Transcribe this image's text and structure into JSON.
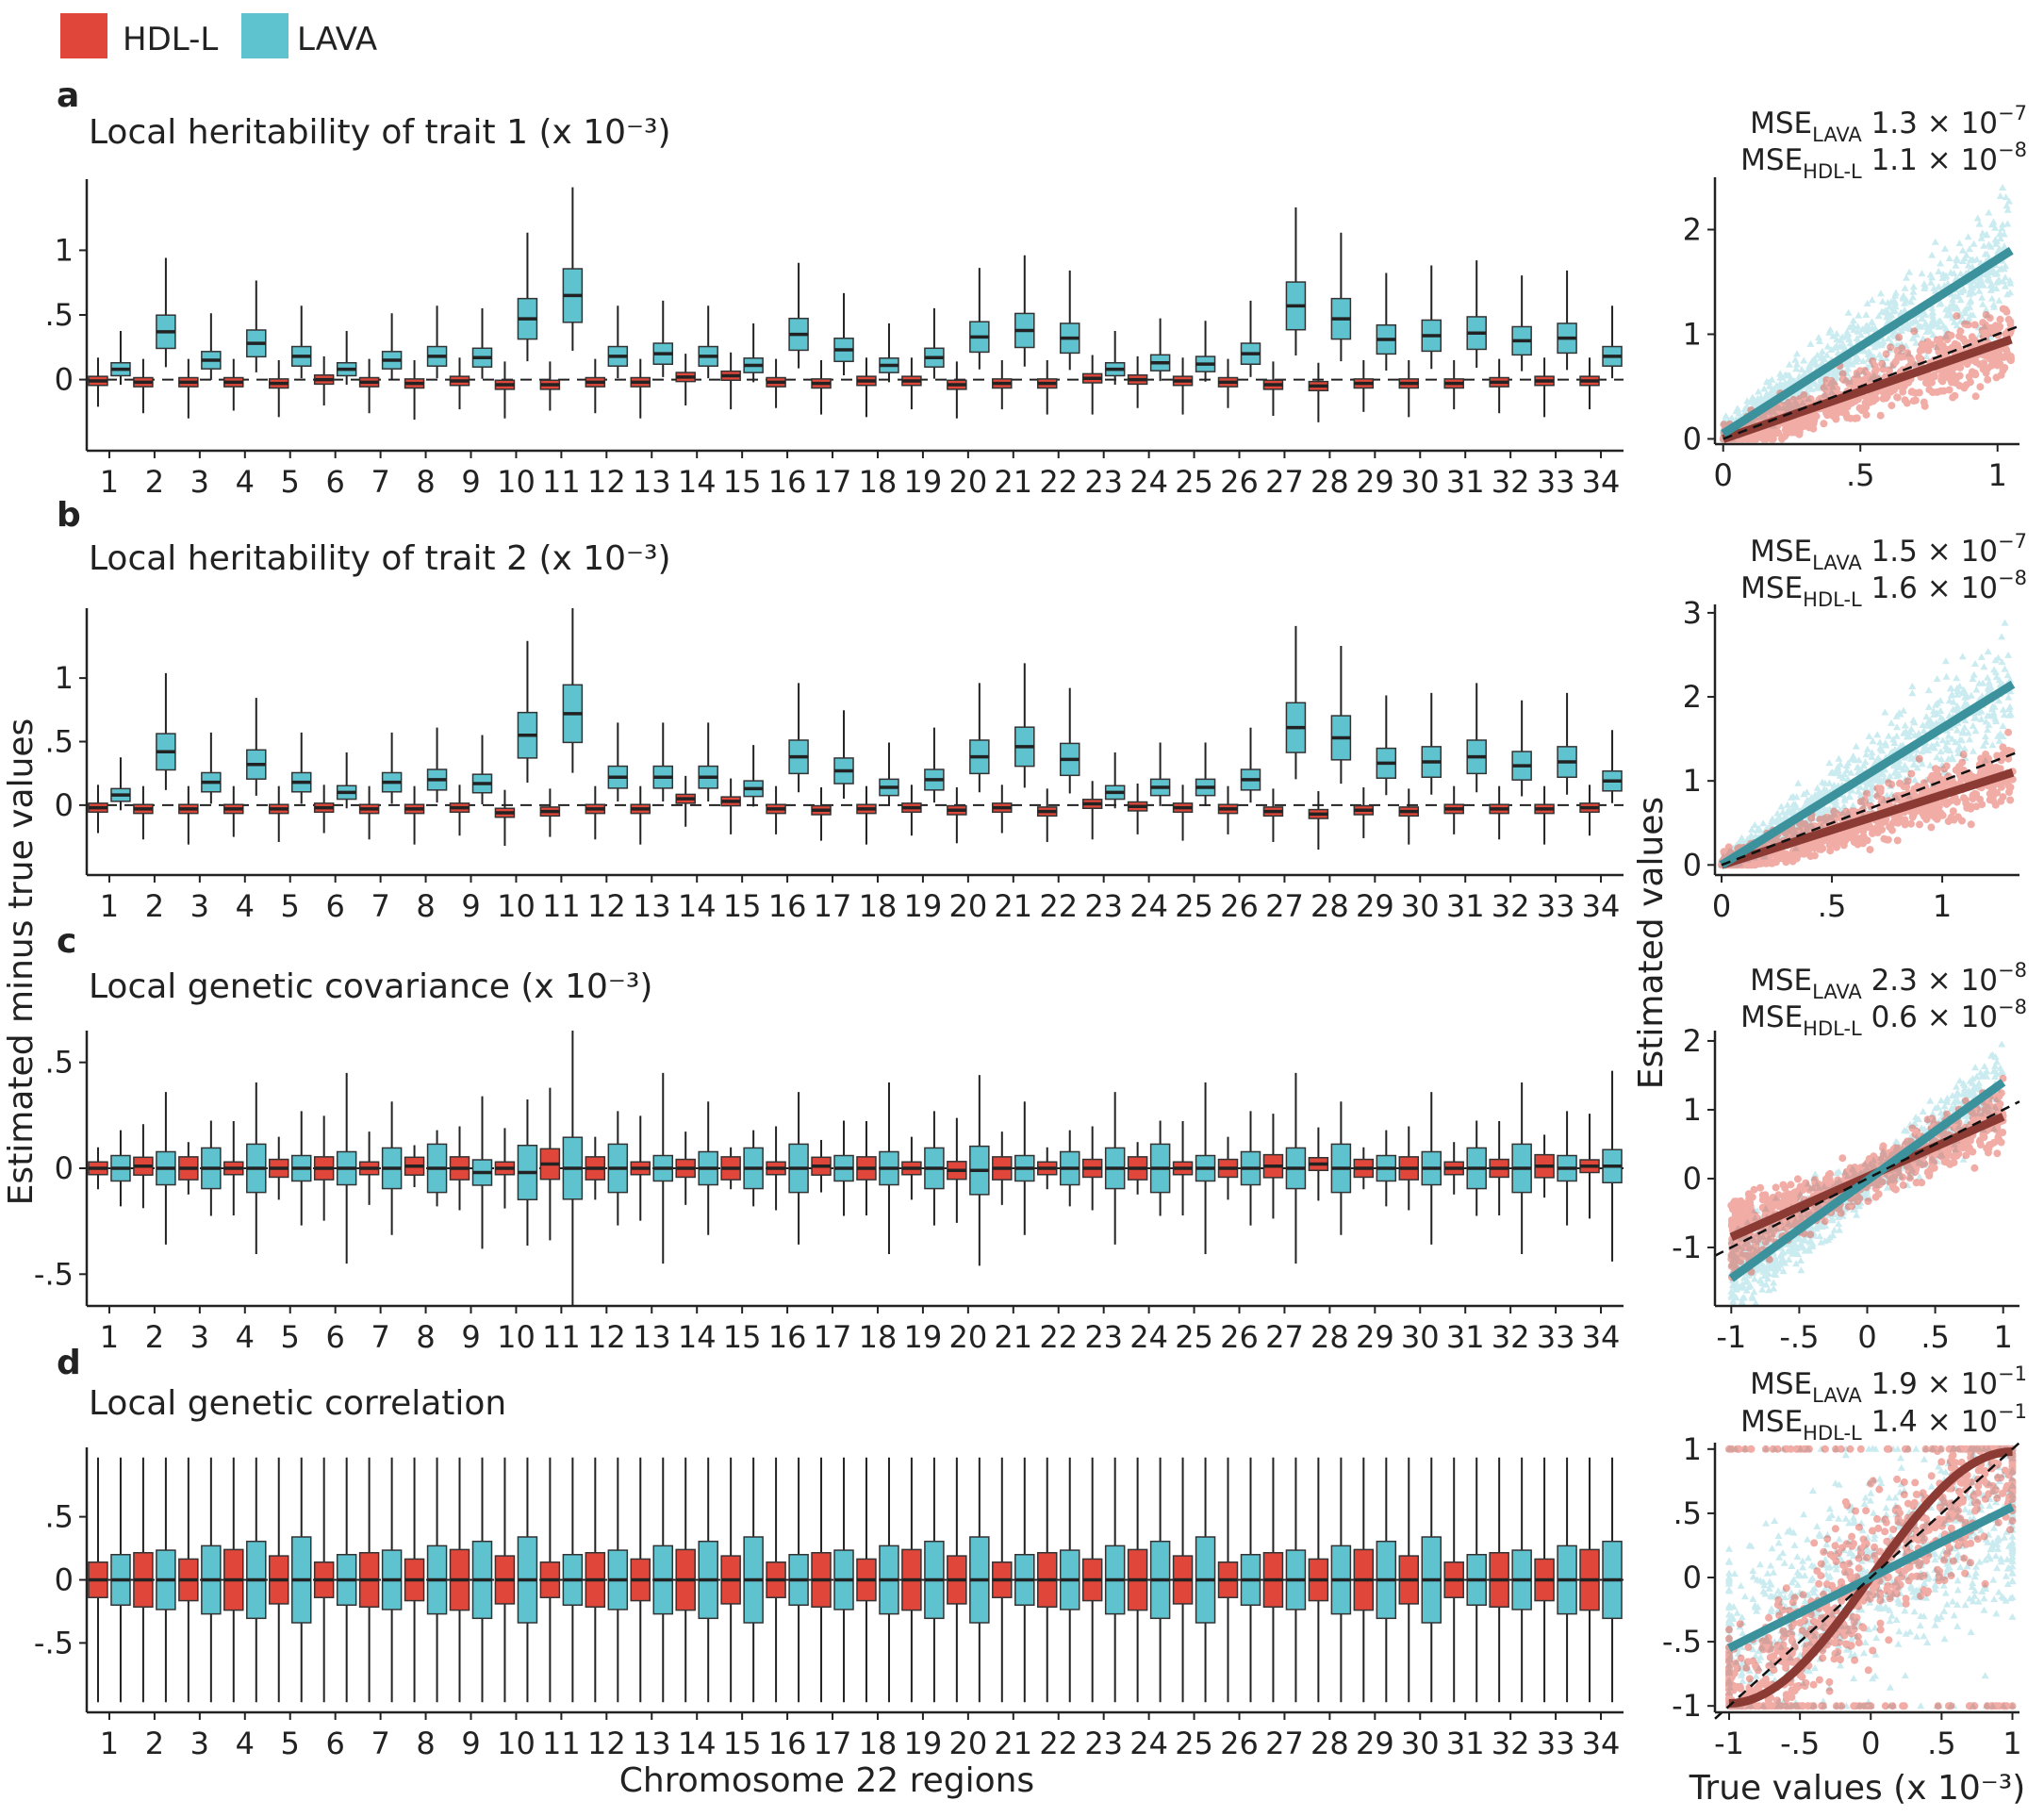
{
  "legend": [
    {
      "label": "HDL-L",
      "color": "#e0473a"
    },
    {
      "label": "LAVA",
      "color": "#5ec3cf"
    }
  ],
  "colors": {
    "hdl": "#e0473a",
    "lava": "#5ec3cf",
    "hdl_line": "#8b3b33",
    "lava_line": "#3c929c",
    "axis": "#222222"
  },
  "y_axis_title": "Estimated minus true values",
  "x_axis_title": "Chromosome 22 regions",
  "scatter_y_axis_title": "Estimated values",
  "scatter_x_axis_title": "True values (x 10⁻³)",
  "chart_data": [
    {
      "type": "boxplot",
      "panel": "a",
      "title": "Local heritability of trait 1 (x 10⁻³)",
      "categories": [
        "1",
        "2",
        "3",
        "4",
        "5",
        "6",
        "7",
        "8",
        "9",
        "10",
        "11",
        "12",
        "13",
        "14",
        "15",
        "16",
        "17",
        "18",
        "19",
        "20",
        "21",
        "22",
        "23",
        "24",
        "25",
        "26",
        "27",
        "28",
        "29",
        "30",
        "31",
        "32",
        "33",
        "34"
      ],
      "ylim": [
        -0.55,
        1.55
      ],
      "yticks": [
        0,
        0.5,
        1
      ],
      "ytick_labels": [
        "0",
        ".5",
        "1"
      ],
      "series": [
        {
          "name": "HDL-L",
          "medians": [
            -0.01,
            -0.02,
            -0.02,
            -0.02,
            -0.03,
            0.0,
            -0.02,
            -0.03,
            -0.01,
            -0.04,
            -0.04,
            -0.02,
            -0.02,
            0.02,
            0.03,
            -0.02,
            -0.03,
            -0.01,
            -0.01,
            -0.04,
            -0.03,
            -0.03,
            0.01,
            0.0,
            -0.01,
            -0.02,
            -0.04,
            -0.05,
            -0.03,
            -0.03,
            -0.03,
            -0.02,
            -0.01,
            -0.01
          ]
        },
        {
          "name": "LAVA",
          "medians": [
            0.08,
            0.37,
            0.15,
            0.28,
            0.18,
            0.08,
            0.15,
            0.18,
            0.17,
            0.47,
            0.65,
            0.18,
            0.2,
            0.18,
            0.11,
            0.35,
            0.23,
            0.11,
            0.17,
            0.33,
            0.38,
            0.32,
            0.08,
            0.13,
            0.12,
            0.2,
            0.57,
            0.47,
            0.31,
            0.34,
            0.36,
            0.3,
            0.32,
            0.18
          ]
        }
      ]
    },
    {
      "type": "boxplot",
      "panel": "b",
      "title": "Local heritability of trait 2 (x 10⁻³)",
      "categories": [
        "1",
        "2",
        "3",
        "4",
        "5",
        "6",
        "7",
        "8",
        "9",
        "10",
        "11",
        "12",
        "13",
        "14",
        "15",
        "16",
        "17",
        "18",
        "19",
        "20",
        "21",
        "22",
        "23",
        "24",
        "25",
        "26",
        "27",
        "28",
        "29",
        "30",
        "31",
        "32",
        "33",
        "34"
      ],
      "ylim": [
        -0.55,
        1.55
      ],
      "yticks": [
        0,
        0.5,
        1
      ],
      "ytick_labels": [
        "0",
        ".5",
        "1"
      ],
      "series": [
        {
          "name": "HDL-L",
          "medians": [
            -0.02,
            -0.03,
            -0.03,
            -0.03,
            -0.03,
            -0.02,
            -0.03,
            -0.03,
            -0.02,
            -0.06,
            -0.05,
            -0.03,
            -0.03,
            0.05,
            0.03,
            -0.03,
            -0.04,
            -0.03,
            -0.02,
            -0.04,
            -0.02,
            -0.05,
            0.01,
            -0.01,
            -0.02,
            -0.03,
            -0.05,
            -0.07,
            -0.04,
            -0.05,
            -0.03,
            -0.03,
            -0.03,
            -0.02
          ]
        },
        {
          "name": "LAVA",
          "medians": [
            0.08,
            0.42,
            0.18,
            0.32,
            0.18,
            0.1,
            0.18,
            0.2,
            0.17,
            0.55,
            0.72,
            0.22,
            0.22,
            0.22,
            0.13,
            0.38,
            0.27,
            0.14,
            0.2,
            0.38,
            0.46,
            0.36,
            0.1,
            0.14,
            0.14,
            0.2,
            0.61,
            0.53,
            0.33,
            0.34,
            0.38,
            0.31,
            0.34,
            0.19
          ]
        }
      ]
    },
    {
      "type": "boxplot",
      "panel": "c",
      "title": "Local genetic covariance (x 10⁻³)",
      "categories": [
        "1",
        "2",
        "3",
        "4",
        "5",
        "6",
        "7",
        "8",
        "9",
        "10",
        "11",
        "12",
        "13",
        "14",
        "15",
        "16",
        "17",
        "18",
        "19",
        "20",
        "21",
        "22",
        "23",
        "24",
        "25",
        "26",
        "27",
        "28",
        "29",
        "30",
        "31",
        "32",
        "33",
        "34"
      ],
      "ylim": [
        -0.65,
        0.65
      ],
      "yticks": [
        -0.5,
        0,
        0.5
      ],
      "ytick_labels": [
        "-.5",
        "0",
        ".5"
      ],
      "series": [
        {
          "name": "HDL-L",
          "medians": [
            0,
            0.01,
            0,
            0,
            0,
            0,
            0,
            0.01,
            0,
            0,
            0.02,
            0,
            0,
            0,
            0,
            0,
            0.01,
            0,
            0,
            -0.01,
            0,
            0,
            0,
            0,
            0,
            0,
            0.01,
            0.02,
            0,
            0,
            0,
            0,
            0.01,
            0.01
          ]
        },
        {
          "name": "LAVA",
          "medians": [
            0,
            0,
            0,
            0,
            0,
            0,
            0,
            0,
            -0.02,
            -0.02,
            0,
            0,
            0,
            0,
            0,
            0,
            0,
            0,
            0,
            -0.01,
            0,
            0,
            0,
            0,
            0,
            0,
            0,
            0,
            0,
            0,
            0,
            0,
            0,
            0.01
          ]
        }
      ]
    },
    {
      "type": "boxplot",
      "panel": "d",
      "title": "Local genetic correlation",
      "categories": [
        "1",
        "2",
        "3",
        "4",
        "5",
        "6",
        "7",
        "8",
        "9",
        "10",
        "11",
        "12",
        "13",
        "14",
        "15",
        "16",
        "17",
        "18",
        "19",
        "20",
        "21",
        "22",
        "23",
        "24",
        "25",
        "26",
        "27",
        "28",
        "29",
        "30",
        "31",
        "32",
        "33",
        "34"
      ],
      "ylim": [
        -1.05,
        1.05
      ],
      "yticks": [
        -0.5,
        0,
        0.5
      ],
      "ytick_labels": [
        "-.5",
        "0",
        ".5"
      ],
      "series": [
        {
          "name": "HDL-L",
          "medians": [
            0,
            0,
            0,
            0,
            0,
            0,
            0,
            0,
            0,
            0,
            0,
            0,
            0,
            0,
            0,
            0,
            0,
            0,
            0,
            0,
            0,
            0,
            0,
            0,
            0,
            0,
            0,
            0,
            0,
            0,
            0,
            0,
            0,
            0
          ]
        },
        {
          "name": "LAVA",
          "medians": [
            0,
            0,
            0,
            0,
            0,
            0,
            0,
            0,
            0,
            0,
            0,
            0,
            0,
            0,
            0,
            0,
            0,
            0,
            0,
            0,
            0,
            0,
            0,
            0,
            0,
            0,
            0,
            0,
            0,
            0,
            0,
            0,
            0,
            0
          ]
        }
      ]
    },
    {
      "type": "scatter",
      "panel": "a",
      "mse": [
        {
          "name": "LAVA",
          "coef": "1.3",
          "exp": "-7"
        },
        {
          "name": "HDL-L",
          "coef": "1.1",
          "exp": "-8"
        }
      ],
      "xlim": [
        -0.03,
        1.08
      ],
      "ylim": [
        -0.05,
        2.5
      ],
      "xticks": [
        0,
        0.5,
        1
      ],
      "xtick_labels": [
        "0",
        ".5",
        "1"
      ],
      "yticks": [
        0,
        1,
        2
      ],
      "ytick_labels": [
        "0",
        "1",
        "2"
      ],
      "fit": {
        "LAVA": [
          [
            0,
            0.05
          ],
          [
            1.05,
            1.8
          ]
        ],
        "HDL-L": [
          [
            0,
            0.0
          ],
          [
            1.05,
            0.95
          ]
        ],
        "identity": [
          [
            0,
            0
          ],
          [
            1.08,
            1.08
          ]
        ]
      }
    },
    {
      "type": "scatter",
      "panel": "b",
      "mse": [
        {
          "name": "LAVA",
          "coef": "1.5",
          "exp": "-7"
        },
        {
          "name": "HDL-L",
          "coef": "1.6",
          "exp": "-8"
        }
      ],
      "xlim": [
        -0.03,
        1.35
      ],
      "ylim": [
        -0.12,
        3.1
      ],
      "xticks": [
        0,
        0.5,
        1
      ],
      "xtick_labels": [
        "0",
        ".5",
        "1"
      ],
      "yticks": [
        0,
        1,
        2,
        3
      ],
      "ytick_labels": [
        "0",
        "1",
        "2",
        "3"
      ],
      "fit": {
        "LAVA": [
          [
            0,
            0.0
          ],
          [
            1.32,
            2.15
          ]
        ],
        "HDL-L": [
          [
            0,
            0.0
          ],
          [
            1.32,
            1.1
          ]
        ],
        "identity": [
          [
            0,
            0
          ],
          [
            1.35,
            1.35
          ]
        ]
      }
    },
    {
      "type": "scatter",
      "panel": "c",
      "mse": [
        {
          "name": "LAVA",
          "coef": "2.3",
          "exp": "-8"
        },
        {
          "name": "HDL-L",
          "coef": "0.6",
          "exp": "-8"
        }
      ],
      "xlim": [
        -1.12,
        1.12
      ],
      "ylim": [
        -1.85,
        2.15
      ],
      "xticks": [
        -1,
        -0.5,
        0,
        0.5,
        1
      ],
      "xtick_labels": [
        "-1",
        "-.5",
        "0",
        ".5",
        "1"
      ],
      "yticks": [
        -1,
        0,
        1,
        2
      ],
      "ytick_labels": [
        "-1",
        "0",
        "1",
        "2"
      ],
      "fit": {
        "LAVA": [
          [
            -1,
            -1.45
          ],
          [
            1,
            1.4
          ]
        ],
        "HDL-L": [
          [
            -1,
            -0.85
          ],
          [
            1,
            0.9
          ]
        ],
        "identity": [
          [
            -1.12,
            -1.12
          ],
          [
            1.12,
            1.12
          ]
        ]
      }
    },
    {
      "type": "scatter",
      "panel": "d",
      "mse": [
        {
          "name": "LAVA",
          "coef": "1.9",
          "exp": "-1"
        },
        {
          "name": "HDL-L",
          "coef": "1.4",
          "exp": "-1"
        }
      ],
      "xlim": [
        -1.1,
        1.05
      ],
      "ylim": [
        -1.05,
        1.05
      ],
      "xticks": [
        -1,
        -0.5,
        0,
        0.5,
        1
      ],
      "xtick_labels": [
        "-1",
        "-.5",
        "0",
        ".5",
        "1"
      ],
      "yticks": [
        -1,
        -0.5,
        0,
        0.5,
        1
      ],
      "ytick_labels": [
        "-1",
        "-.5",
        "0",
        ".5",
        "1"
      ],
      "fit": {
        "LAVA": [
          [
            -1,
            -0.55
          ],
          [
            1,
            0.55
          ]
        ],
        "HDL-L": [
          [
            -1,
            -1.02
          ],
          [
            1,
            0.98
          ]
        ],
        "identity": [
          [
            -1.1,
            -1.1
          ],
          [
            1.05,
            1.05
          ]
        ]
      }
    }
  ]
}
